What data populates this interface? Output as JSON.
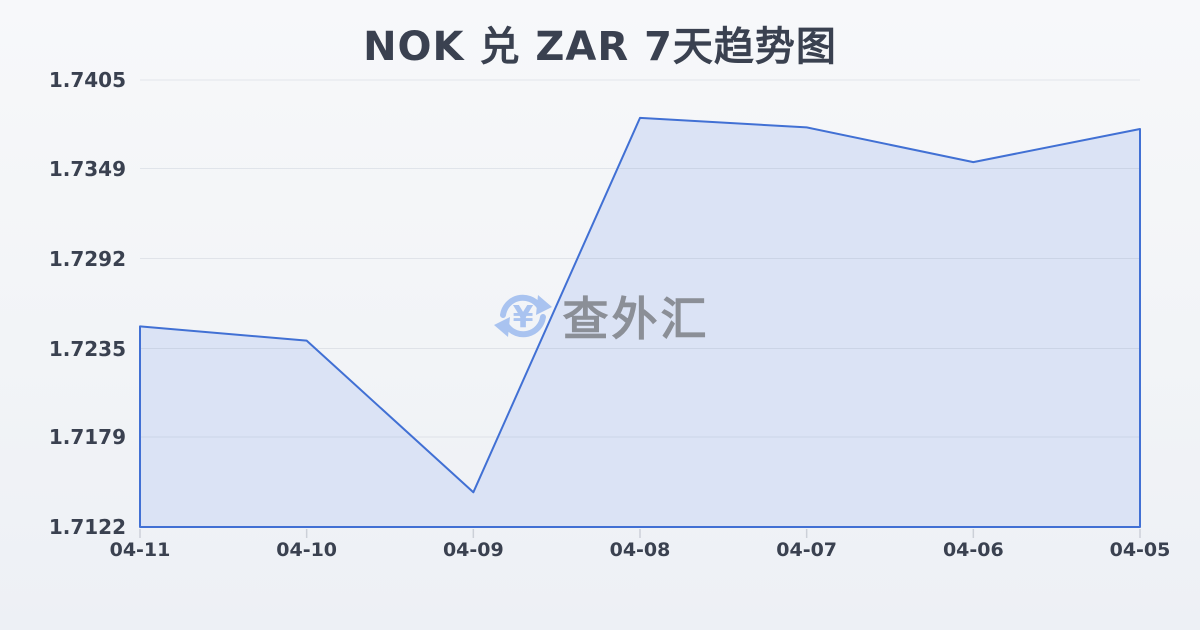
{
  "header": {
    "title": "NOK 兑 ZAR 7天趋势图"
  },
  "watermark": {
    "icon": "currency-exchange-icon",
    "symbol": "¥",
    "text": "查外汇",
    "icon_color": "#a9c3f0",
    "text_color": "#8b8f97"
  },
  "chart_data": {
    "type": "area",
    "title": "NOK 兑 ZAR 7天趋势图",
    "series_name": "NOK/ZAR",
    "x": [
      "04-11",
      "04-10",
      "04-09",
      "04-08",
      "04-07",
      "04-06",
      "04-05"
    ],
    "values": [
      1.7249,
      1.724,
      1.7144,
      1.7381,
      1.7375,
      1.7353,
      1.7374
    ],
    "y_ticks": [
      "1.7405",
      "1.7349",
      "1.7292",
      "1.7235",
      "1.7179",
      "1.7122"
    ],
    "ylim": [
      1.7122,
      1.7405
    ],
    "grid": true,
    "legend": "none",
    "line_color": "#4170d4",
    "fill_color": "#dbe3f5",
    "grid_color": "rgba(125,135,155,0.16)",
    "tick_color": "#ccd0d8"
  }
}
